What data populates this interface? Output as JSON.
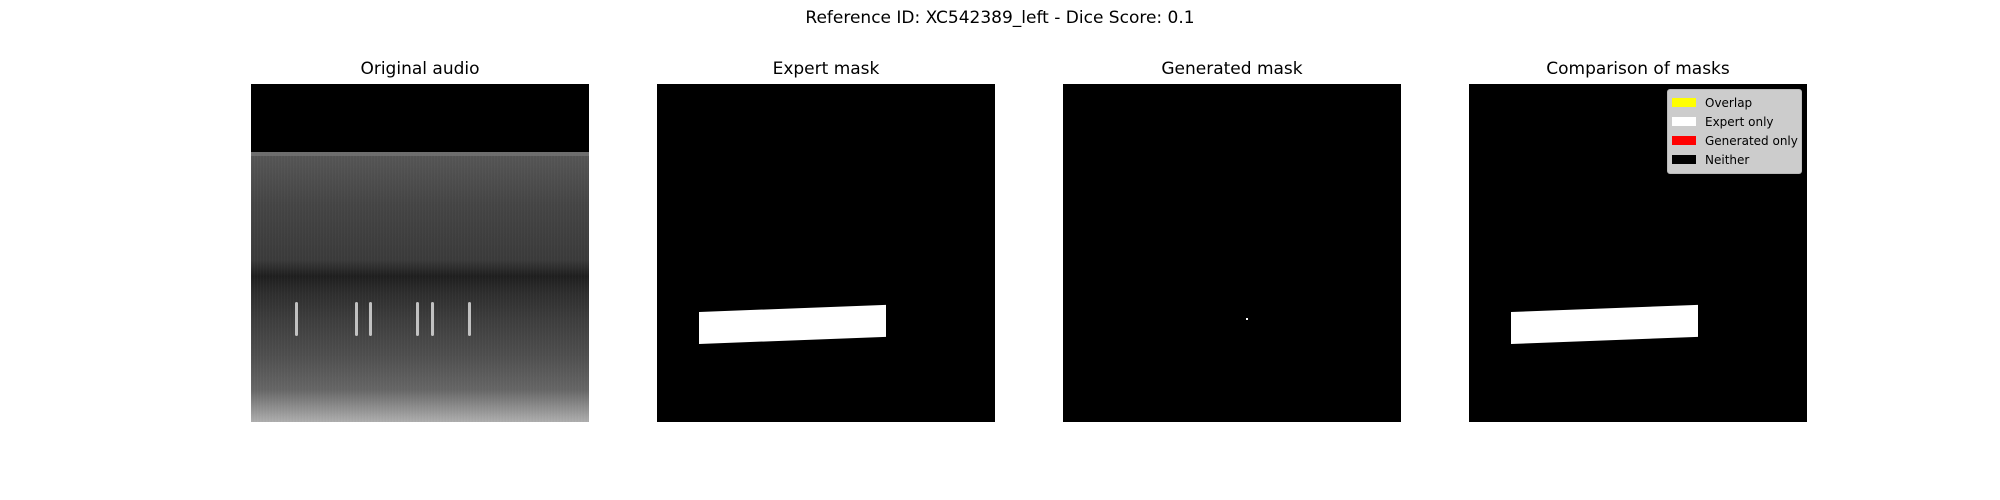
{
  "suptitle": "Reference ID: XC542389_left - Dice Score: 0.1",
  "panels": [
    {
      "title": "Original audio"
    },
    {
      "title": "Expert mask"
    },
    {
      "title": "Generated mask"
    },
    {
      "title": "Comparison of masks"
    }
  ],
  "legend": {
    "items": [
      {
        "label": "Overlap",
        "color": "#ffff00"
      },
      {
        "label": "Expert only",
        "color": "#ffffff"
      },
      {
        "label": "Generated only",
        "color": "#ff0000"
      },
      {
        "label": "Neither",
        "color": "#000000"
      }
    ]
  }
}
